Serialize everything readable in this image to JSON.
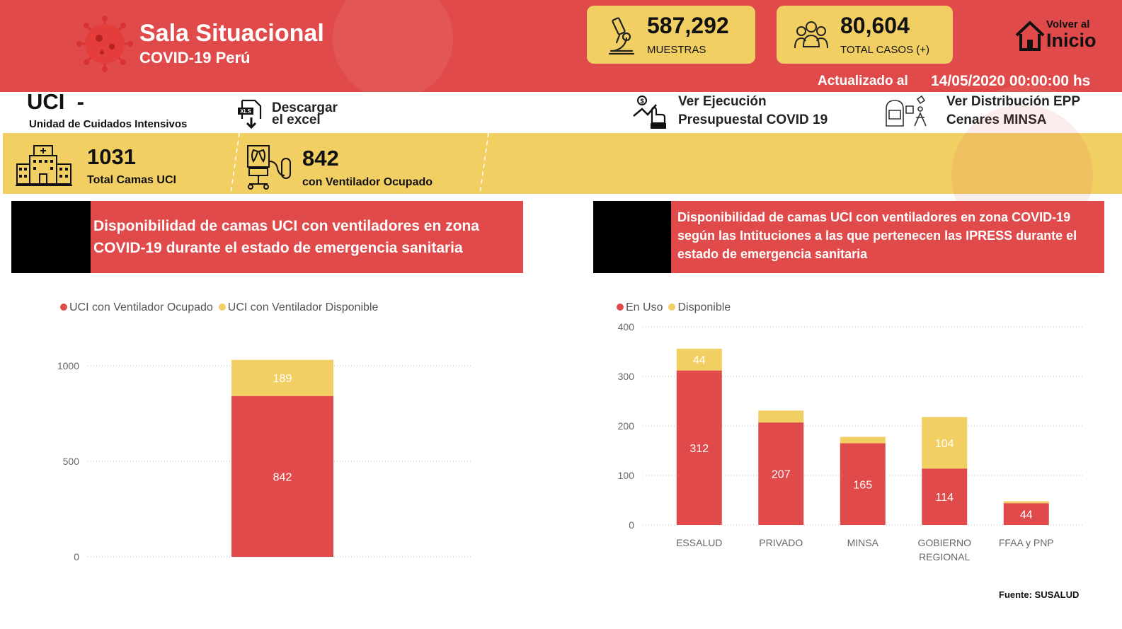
{
  "header": {
    "title": "Sala Situacional",
    "subtitle": "COVID-19 Perú",
    "kpis": [
      {
        "value": "587,292",
        "label": "MUESTRAS",
        "icon": "microscope-icon"
      },
      {
        "value": "80,604",
        "label": "TOTAL CASOS (+)",
        "icon": "people-group-icon"
      }
    ],
    "home": {
      "line1": "Volver al",
      "line2": "Inicio",
      "icon": "home-icon"
    },
    "updated_label": "Actualizado al",
    "updated_value": "14/05/2020 00:00:00 hs"
  },
  "section": {
    "title": "UCI",
    "dash": "-",
    "subtitle": "Unidad de Cuidados Intensivos"
  },
  "links": {
    "download": {
      "line1": "Descargar",
      "line2": "el excel",
      "icon": "xls-download-icon"
    },
    "budget": {
      "line1": "Ver Ejecución",
      "line2": "Presupuestal COVID 19",
      "icon": "money-hand-icon"
    },
    "epp": {
      "line1": "Ver Distribución EPP",
      "line2": "Cenares MINSA",
      "icon": "ppe-icon"
    }
  },
  "summary": {
    "beds": {
      "value": "1031",
      "label": "Total Camas UCI",
      "icon": "hospital-icon"
    },
    "ventilators": {
      "value": "842",
      "label": "con Ventilador Ocupado",
      "icon": "ventilator-icon"
    }
  },
  "colors": {
    "red": "#e04a4a",
    "yellow": "#f2cf62",
    "black": "#000000"
  },
  "panels": {
    "left": {
      "banner": "Disponibilidad  de camas UCI con ventiladores en zona COVID-19 durante el estado de emergencia sanitaria",
      "legend": [
        "UCI con Ventilador Ocupado",
        "UCI con Ventilador Disponible"
      ]
    },
    "right": {
      "banner": "Disponibilidad de camas UCI con ventiladores en zona COVID-19 según las Intituciones a las que pertenecen las IPRESS durante el estado de emergencia sanitaria",
      "legend": [
        "En Uso",
        "Disponible"
      ]
    }
  },
  "chart_data": [
    {
      "type": "bar",
      "stacked": true,
      "categories": [
        ""
      ],
      "series": [
        {
          "name": "UCI con Ventilador Ocupado",
          "values": [
            842
          ],
          "color": "#e04a4a"
        },
        {
          "name": "UCI con Ventilador Disponible",
          "values": [
            189
          ],
          "color": "#f2cf62"
        }
      ],
      "ylim": [
        0,
        1000
      ],
      "yticks": [
        0,
        500,
        1000
      ],
      "grid": true,
      "legend": "top-left"
    },
    {
      "type": "bar",
      "stacked": true,
      "categories": [
        "ESSALUD",
        "PRIVADO",
        "MINSA",
        "GOBIERNO REGIONAL",
        "FFAA y PNP"
      ],
      "series": [
        {
          "name": "En Uso",
          "values": [
            312,
            207,
            165,
            114,
            44
          ],
          "labels": [
            "312",
            "207",
            "165",
            "114",
            "44"
          ],
          "color": "#e04a4a"
        },
        {
          "name": "Disponible",
          "values": [
            44,
            24,
            13,
            104,
            4
          ],
          "labels": [
            "44",
            "",
            "",
            "104",
            ""
          ],
          "color": "#f2cf62"
        }
      ],
      "ylim": [
        0,
        400
      ],
      "yticks": [
        0,
        100,
        200,
        300,
        400
      ],
      "grid": true,
      "legend": "top-left"
    }
  ],
  "footer": {
    "source": "Fuente: SUSALUD"
  }
}
